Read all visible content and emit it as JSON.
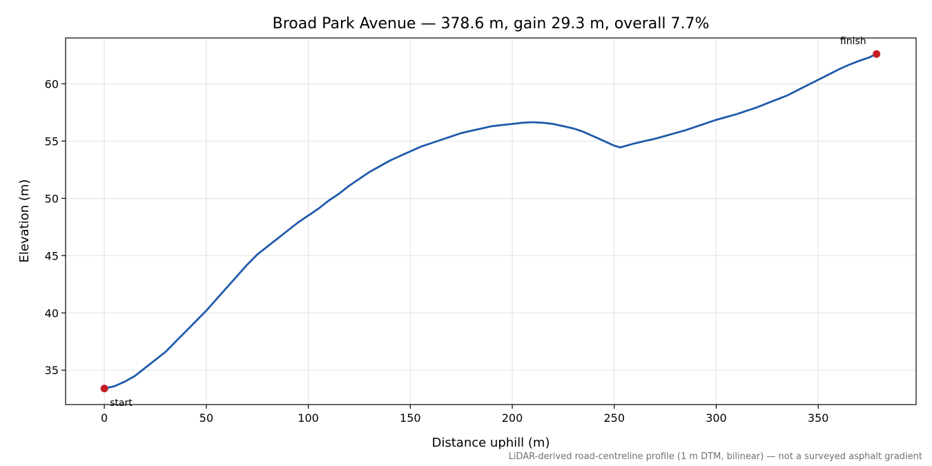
{
  "chart_data": {
    "type": "line",
    "title": "Broad Park Avenue — 378.6 m, gain 29.3 m, overall 7.7%",
    "xlabel": "Distance uphill (m)",
    "ylabel": "Elevation (m)",
    "xlim": [
      -19,
      398
    ],
    "ylim": [
      32,
      64
    ],
    "xticks": [
      0,
      50,
      100,
      150,
      200,
      250,
      300,
      350
    ],
    "yticks": [
      35,
      40,
      45,
      50,
      55,
      60
    ],
    "grid": true,
    "line_color": "#1f5aab",
    "marker_color": "#c41e24",
    "series": [
      {
        "x": [
          0,
          5,
          10,
          15,
          20,
          25,
          30,
          35,
          40,
          45,
          50,
          55,
          60,
          65,
          70,
          75,
          80,
          85,
          90,
          95,
          100,
          105,
          110,
          115,
          120,
          125,
          130,
          135,
          140,
          145,
          150,
          155,
          160,
          165,
          170,
          175,
          180,
          185,
          190,
          195,
          200,
          205,
          210,
          215,
          220,
          225,
          230,
          235,
          240,
          245,
          250,
          253,
          255,
          260,
          265,
          270,
          275,
          280,
          285,
          290,
          295,
          300,
          305,
          310,
          315,
          320,
          325,
          330,
          335,
          340,
          345,
          350,
          355,
          360,
          365,
          370,
          375,
          378.6
        ],
        "y": [
          33.4,
          33.6,
          34.0,
          34.5,
          35.2,
          35.9,
          36.6,
          37.5,
          38.4,
          39.3,
          40.2,
          41.2,
          42.2,
          43.2,
          44.2,
          45.1,
          45.8,
          46.5,
          47.2,
          47.9,
          48.5,
          49.1,
          49.8,
          50.4,
          51.1,
          51.7,
          52.3,
          52.8,
          53.3,
          53.7,
          54.1,
          54.5,
          54.8,
          55.1,
          55.4,
          55.7,
          55.9,
          56.1,
          56.3,
          56.4,
          56.5,
          56.6,
          56.65,
          56.6,
          56.5,
          56.3,
          56.1,
          55.8,
          55.4,
          55.0,
          54.6,
          54.45,
          54.55,
          54.8,
          55.0,
          55.2,
          55.45,
          55.7,
          55.95,
          56.25,
          56.55,
          56.85,
          57.1,
          57.35,
          57.65,
          57.95,
          58.3,
          58.65,
          59.0,
          59.45,
          59.9,
          60.35,
          60.8,
          61.25,
          61.65,
          62.0,
          62.3,
          62.6
        ]
      }
    ],
    "annotations": [
      {
        "text": "start",
        "x": 0,
        "y": 33.4
      },
      {
        "text": "finish",
        "x": 378.6,
        "y": 62.6
      }
    ]
  },
  "caption": "LiDAR-derived road-centreline profile (1 m DTM, bilinear) — not a surveyed asphalt gradient"
}
